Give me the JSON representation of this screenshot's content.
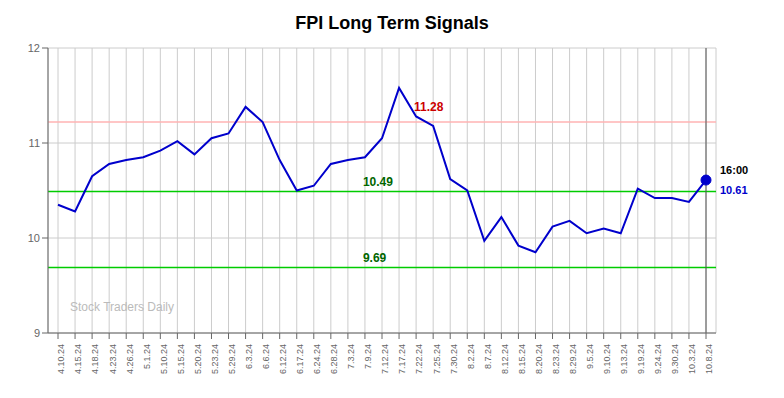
{
  "chart_data": {
    "type": "line",
    "title": "FPI Long Term Signals",
    "color": "#0000cc",
    "grid": true,
    "ylim": [
      9,
      12
    ],
    "yticks": [
      9,
      10,
      11,
      12
    ],
    "categories": [
      "4.10.24",
      "4.15.24",
      "4.18.24",
      "4.23.24",
      "4.26.24",
      "5.1.24",
      "5.10.24",
      "5.15.24",
      "5.20.24",
      "5.23.24",
      "5.29.24",
      "6.3.24",
      "6.6.24",
      "6.12.24",
      "6.17.24",
      "6.24.24",
      "6.28.24",
      "7.3.24",
      "7.9.24",
      "7.12.24",
      "7.17.24",
      "7.22.24",
      "7.25.24",
      "7.30.24",
      "8.2.24",
      "8.7.24",
      "8.12.24",
      "8.15.24",
      "8.20.24",
      "8.23.24",
      "8.29.24",
      "9.5.24",
      "9.10.24",
      "9.13.24",
      "9.19.24",
      "9.24.24",
      "9.30.24",
      "10.3.24",
      "10.8.24"
    ],
    "values": [
      10.35,
      10.28,
      10.65,
      10.78,
      10.82,
      10.85,
      10.92,
      11.02,
      10.88,
      11.05,
      11.1,
      11.38,
      11.22,
      10.82,
      10.5,
      10.55,
      10.78,
      10.82,
      10.85,
      11.05,
      11.58,
      11.28,
      11.18,
      10.62,
      10.5,
      9.97,
      10.22,
      9.92,
      9.85,
      10.12,
      10.18,
      10.05,
      10.1,
      10.05,
      10.52,
      10.42,
      10.42,
      10.38,
      10.61
    ],
    "reference_lines": [
      {
        "y": 11.22,
        "color": "#ffb3b3"
      },
      {
        "y": 10.49,
        "color": "#00cc00"
      },
      {
        "y": 9.69,
        "color": "#00cc00"
      }
    ],
    "vertical_line": {
      "x": "10.8.24",
      "color": "#555555"
    },
    "annotations": [
      {
        "text": "11.28",
        "x": "7.22.24",
        "y": 11.28,
        "color": "#cc0000"
      },
      {
        "text": "10.49",
        "x": "7.9.24",
        "y": 10.49,
        "color": "#006600"
      },
      {
        "text": "9.69",
        "x": "7.9.24",
        "y": 9.69,
        "color": "#006600"
      },
      {
        "text": "16:00",
        "x": "10.8.24",
        "y": 10.61,
        "color": "#000000"
      },
      {
        "text": "10.61",
        "x": "10.8.24",
        "y": 10.61,
        "color": "#0000cc"
      }
    ],
    "watermark": "Stock Traders Daily"
  }
}
